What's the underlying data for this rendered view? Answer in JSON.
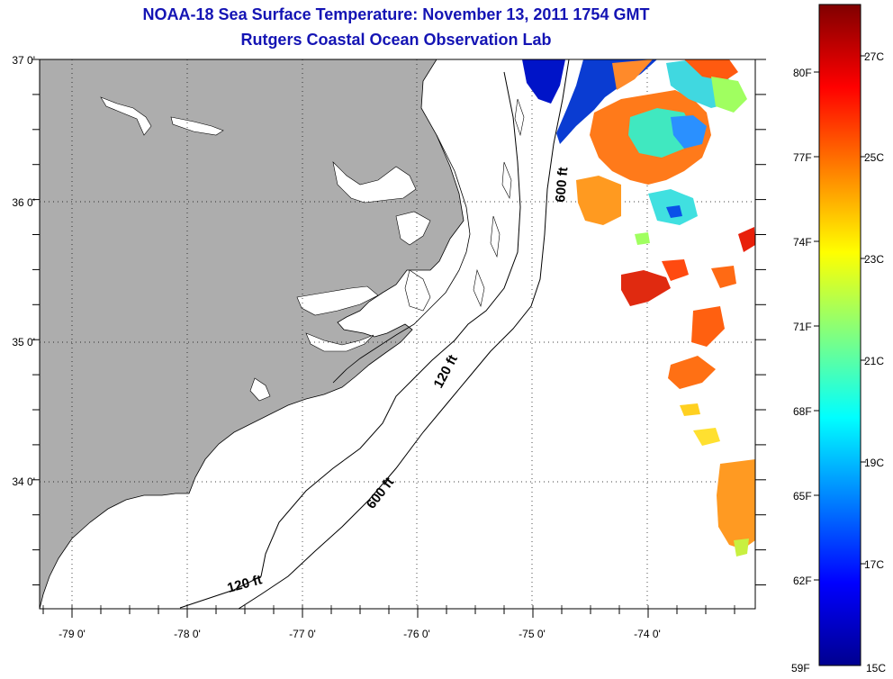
{
  "title": {
    "line1": "NOAA-18 Sea Surface Temperature:  November 13, 2011 1754 GMT",
    "line2": "Rutgers Coastal Ocean Observation Lab"
  },
  "map": {
    "lon_labels": [
      "-79 0'",
      "-78 0'",
      "-77 0'",
      "-76 0'",
      "-75 0'",
      "-74 0'"
    ],
    "lat_labels": [
      "37 0'",
      "36 0'",
      "35 0'",
      "34 0'"
    ],
    "contour_labels": {
      "shelf_600_north": "600 ft",
      "shelf_120_mid": "120 ft",
      "shelf_600_mid": "600 ft",
      "shelf_120_south": "120 ft"
    },
    "land_color": "#adadad"
  },
  "colorbar": {
    "fahrenheit_labels": [
      "80F",
      "77F",
      "74F",
      "71F",
      "68F",
      "65F",
      "62F",
      "59F"
    ],
    "celsius_labels": [
      "27C",
      "25C",
      "23C",
      "21C",
      "19C",
      "17C",
      "15C"
    ],
    "colors": [
      "#00008f",
      "#0000ff",
      "#0080ff",
      "#00ffff",
      "#80ff80",
      "#ffff00",
      "#ff8000",
      "#ff0000",
      "#800000"
    ]
  }
}
